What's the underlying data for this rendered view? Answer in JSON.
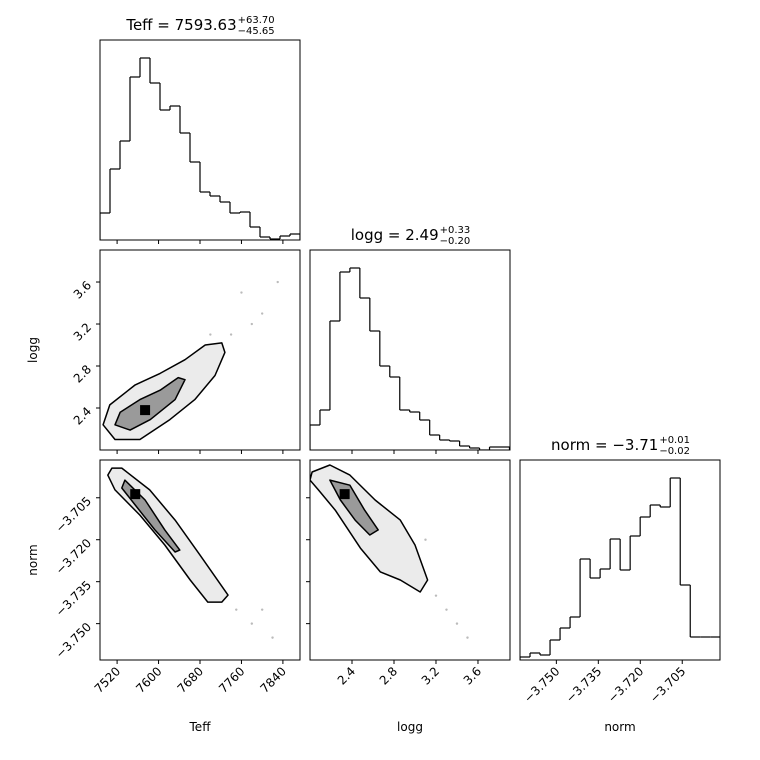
{
  "chart_data": [
    {
      "type": "histogram",
      "title": "Teff = 7593.63",
      "title_upper": "+63.70",
      "title_lower": "−45.65",
      "color": "#000000",
      "bins": [
        7487,
        7506.3,
        7525.6,
        7544.9,
        7564.2,
        7583.5,
        7602.8,
        7622.1,
        7641.4,
        7660.7,
        7680,
        7699.3,
        7718.6,
        7737.9,
        7757.2,
        7776.5,
        7795.8,
        7815.1,
        7834.4,
        7853.7,
        7873
      ],
      "counts": [
        27,
        71,
        99,
        163,
        182,
        157,
        130,
        134,
        107,
        78,
        48,
        44,
        38,
        27,
        28,
        13,
        3,
        1,
        4,
        6
      ],
      "xlim": [
        7487,
        7873
      ],
      "ylim": [
        0,
        200
      ],
      "xticks": [
        7520,
        7600,
        7680,
        7760,
        7840
      ]
    },
    {
      "type": "contour",
      "ylabel": "logg",
      "xlim": [
        7487,
        7873
      ],
      "ylim": [
        2.0,
        3.905
      ],
      "xticks": [
        7520,
        7600,
        7680,
        7760,
        7840
      ],
      "yticks": [
        2.4,
        2.8,
        3.2,
        3.6
      ],
      "contours": [
        {
          "fill": "#ebebeb",
          "x": [
            7493,
            7516,
            7564,
            7622,
            7670,
            7709,
            7728,
            7722,
            7690,
            7651,
            7603,
            7555,
            7506
          ],
          "y": [
            2.24,
            2.1,
            2.1,
            2.29,
            2.48,
            2.71,
            2.93,
            3.02,
            3.0,
            2.86,
            2.73,
            2.62,
            2.43
          ]
        },
        {
          "fill": "#9a9a9a",
          "x": [
            7516,
            7545,
            7584,
            7632,
            7651,
            7638,
            7603,
            7564,
            7526
          ],
          "y": [
            2.24,
            2.19,
            2.29,
            2.48,
            2.67,
            2.69,
            2.57,
            2.48,
            2.36
          ]
        }
      ],
      "points": {
        "x": [
          7760,
          7800,
          7740,
          7830,
          7700,
          7780
        ],
        "y": [
          3.5,
          3.3,
          3.1,
          3.6,
          3.1,
          3.2
        ]
      },
      "peak": {
        "x": 7574,
        "y": 2.38
      }
    },
    {
      "type": "histogram",
      "title": "logg = 2.49",
      "title_upper": "+0.33",
      "title_lower": "−0.20",
      "color": "#000000",
      "bins": [
        2.0,
        2.095,
        2.19,
        2.285,
        2.38,
        2.475,
        2.57,
        2.665,
        2.76,
        2.855,
        2.95,
        3.045,
        3.14,
        3.235,
        3.33,
        3.425,
        3.52,
        3.615,
        3.71,
        3.805,
        3.9
      ],
      "counts": [
        25,
        40,
        129,
        178,
        182,
        152,
        119,
        84,
        73,
        40,
        38,
        30,
        15,
        10,
        9,
        4,
        2,
        0,
        3,
        3
      ],
      "xlim": [
        2.0,
        3.905
      ],
      "ylim": [
        0,
        200
      ],
      "xticks": [
        2.4,
        2.8,
        3.2,
        3.6
      ]
    },
    {
      "type": "contour",
      "xlabel": "Teff",
      "ylabel": "norm",
      "xlim": [
        7487,
        7873
      ],
      "ylim": [
        -3.763,
        -3.6915
      ],
      "xticks": [
        7520,
        7600,
        7680,
        7760,
        7840
      ],
      "yticks": [
        {
          "value": -3.705,
          "label": "−3.705"
        },
        {
          "value": -3.72,
          "label": "−3.720"
        },
        {
          "value": -3.735,
          "label": "−3.735"
        },
        {
          "value": -3.75,
          "label": "−3.750"
        }
      ],
      "contours": [
        {
          "fill": "#ebebeb",
          "x": [
            7510,
            7529,
            7583,
            7632,
            7680,
            7734,
            7722,
            7695,
            7661,
            7612,
            7564,
            7516,
            7502
          ],
          "y": [
            -3.6944,
            -3.6944,
            -3.7022,
            -3.713,
            -3.7255,
            -3.7398,
            -3.7423,
            -3.7423,
            -3.7344,
            -3.7219,
            -3.7112,
            -3.7022,
            -3.6969
          ]
        },
        {
          "fill": "#9a9a9a",
          "x": [
            7535,
            7574,
            7612,
            7641,
            7632,
            7593,
            7555,
            7529
          ],
          "y": [
            -3.6987,
            -3.7058,
            -3.7165,
            -3.7237,
            -3.7244,
            -3.7165,
            -3.7076,
            -3.7015
          ]
        }
      ],
      "points": {
        "x": [
          7750,
          7780,
          7820,
          7700,
          7800
        ],
        "y": [
          -3.745,
          -3.75,
          -3.755,
          -3.74,
          -3.745
        ]
      },
      "peak": {
        "x": 7555,
        "y": -3.7037
      }
    },
    {
      "type": "contour",
      "xlabel": "logg",
      "xlim": [
        2.0,
        3.905
      ],
      "ylim": [
        -3.763,
        -3.6915
      ],
      "xticks": [
        2.4,
        2.8,
        3.2,
        3.6
      ],
      "yticks": [
        -3.705,
        -3.72,
        -3.735,
        -3.75
      ],
      "contours": [
        {
          "fill": "#ebebeb",
          "x": [
            2.02,
            2.19,
            2.38,
            2.62,
            2.86,
            3.0,
            3.12,
            3.05,
            2.86,
            2.67,
            2.48,
            2.24,
            2.08,
            2.0
          ],
          "y": [
            -3.6958,
            -3.6933,
            -3.6969,
            -3.7058,
            -3.713,
            -3.7219,
            -3.7344,
            -3.7387,
            -3.7344,
            -3.7315,
            -3.723,
            -3.7094,
            -3.7022,
            -3.6987
          ]
        },
        {
          "fill": "#9a9a9a",
          "x": [
            2.19,
            2.38,
            2.52,
            2.65,
            2.57,
            2.43,
            2.29
          ],
          "y": [
            -3.6987,
            -3.7005,
            -3.7094,
            -3.7165,
            -3.7183,
            -3.713,
            -3.7058
          ]
        }
      ],
      "points": {
        "x": [
          3.2,
          3.3,
          3.4,
          3.1,
          3.5
        ],
        "y": [
          -3.74,
          -3.745,
          -3.75,
          -3.72,
          -3.755
        ]
      },
      "peak": {
        "x": 2.33,
        "y": -3.7037
      }
    },
    {
      "type": "histogram",
      "title": "norm = −3.71",
      "title_upper": "+0.01",
      "title_lower": "−0.02",
      "xlabel": "norm",
      "color": "#000000",
      "bins": [
        -3.763,
        -3.75942,
        -3.75584,
        -3.75226,
        -3.74868,
        -3.7451,
        -3.74152,
        -3.73794,
        -3.73436,
        -3.73078,
        -3.7272,
        -3.72362,
        -3.72004,
        -3.71646,
        -3.71288,
        -3.7093,
        -3.70572,
        -3.70214,
        -3.69856,
        -3.69498,
        -3.6914
      ],
      "counts": [
        3,
        7,
        5,
        20,
        32,
        43,
        101,
        82,
        91,
        121,
        90,
        124,
        143,
        155,
        153,
        182,
        75,
        23,
        23,
        23
      ],
      "xlim": [
        -3.763,
        -3.6915
      ],
      "ylim": [
        0,
        200
      ],
      "xticks": [
        {
          "value": -3.75,
          "label": "−3.750"
        },
        {
          "value": -3.735,
          "label": "−3.735"
        },
        {
          "value": -3.72,
          "label": "−3.720"
        },
        {
          "value": -3.705,
          "label": "−3.705"
        }
      ]
    }
  ]
}
